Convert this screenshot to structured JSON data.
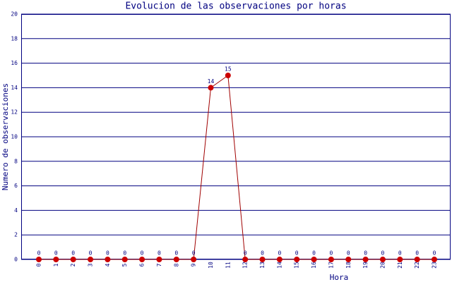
{
  "chart_data": {
    "type": "line",
    "title": "Evolucion de las observaciones por horas",
    "x_label": "Hora",
    "y_label": "Numero de observaciones",
    "categories": [
      "0",
      "1",
      "2",
      "3",
      "4",
      "5",
      "6",
      "7",
      "8",
      "9",
      "10",
      "11",
      "12",
      "13",
      "14",
      "15",
      "16",
      "17",
      "18",
      "19",
      "20",
      "21",
      "22",
      "23"
    ],
    "series": [
      {
        "name": "observaciones",
        "color": "#a00000",
        "marker_color": "#cc0000",
        "values": [
          0,
          0,
          0,
          0,
          0,
          0,
          0,
          0,
          0,
          0,
          14,
          15,
          0,
          0,
          0,
          0,
          0,
          0,
          0,
          0,
          0,
          0,
          0,
          0
        ]
      }
    ],
    "ylim": [
      0,
      20
    ],
    "yticks": [
      0,
      2,
      4,
      6,
      8,
      10,
      12,
      14,
      16,
      18,
      20
    ],
    "grid": true
  }
}
